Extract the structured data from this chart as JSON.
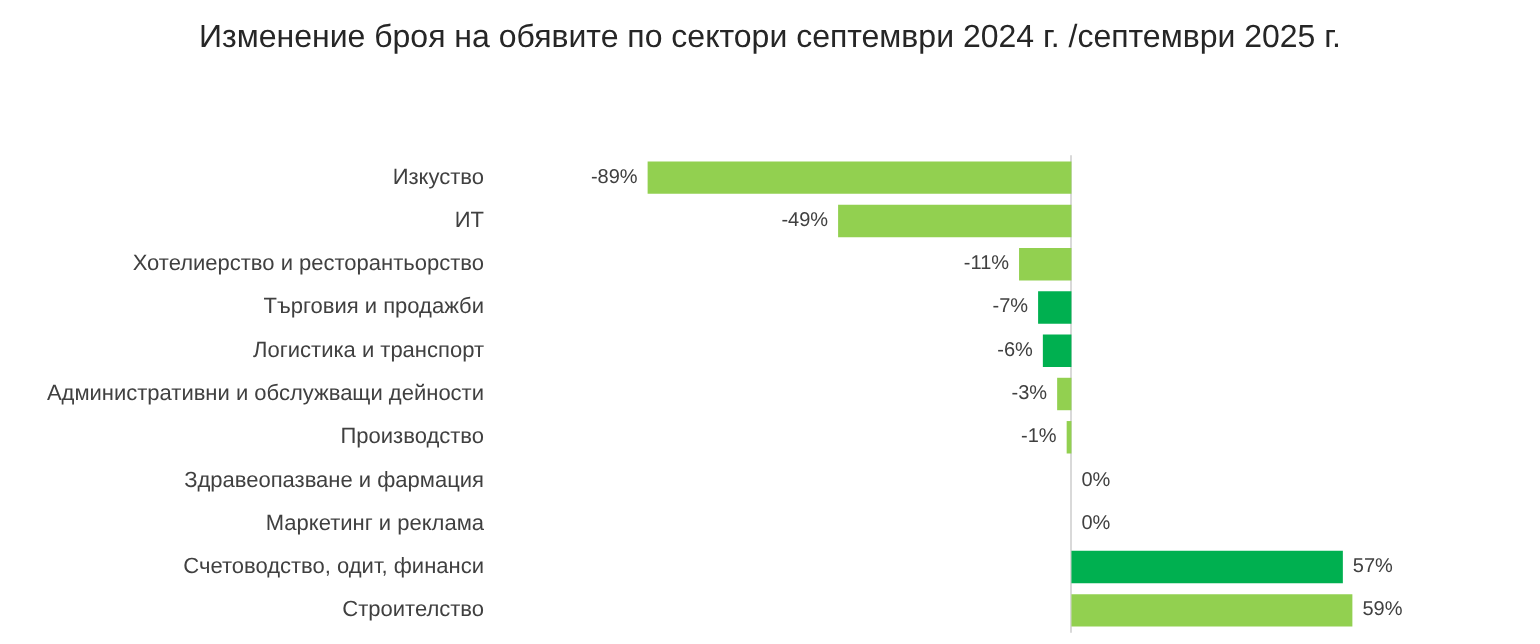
{
  "chart_data": {
    "type": "bar",
    "orientation": "horizontal",
    "title": "Изменение броя на обявите по сектори септември 2024 г. /септември 2025 г.",
    "categories": [
      "Изкуство",
      "ИТ",
      "Хотелиерство и ресторантьорство",
      "Търговия и продажби",
      "Логистика и транспорт",
      "Административни и обслужващи дейности",
      "Производство",
      "Здравеопазване и фармация",
      "Маркетинг и реклама",
      "Счетоводство, одит, финанси",
      "Строителство"
    ],
    "values": [
      -89,
      -49,
      -11,
      -7,
      -6,
      -3,
      -1,
      0,
      0,
      57,
      59
    ],
    "colors": [
      "#92d050",
      "#92d050",
      "#92d050",
      "#00b050",
      "#00b050",
      "#92d050",
      "#92d050",
      "#92d050",
      "#92d050",
      "#00b050",
      "#92d050"
    ],
    "value_labels": [
      "-89%",
      "-49%",
      "-11%",
      "-7%",
      "-6%",
      "-3%",
      "-1%",
      "0%",
      "0%",
      "57%",
      "59%"
    ],
    "grid": false
  }
}
